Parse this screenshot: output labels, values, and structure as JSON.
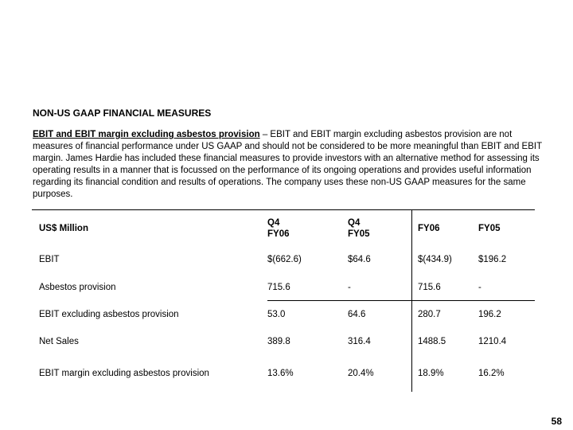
{
  "title": "NON-US GAAP FINANCIAL MEASURES",
  "intro": {
    "term": "EBIT and EBIT margin excluding asbestos provision",
    "text": " – EBIT and EBIT margin excluding asbestos provision are not measures of financial performance under US GAAP and should not be considered to be more meaningful than EBIT and EBIT margin. James Hardie has included these financial measures to provide investors with an alternative method for assessing its operating results in a manner that is focussed on the performance of its ongoing operations and provides useful information regarding its financial condition and results of operations. The company uses these non-US GAAP measures for the same purposes."
  },
  "table": {
    "headers": [
      {
        "l1": "US$ Million",
        "l2": ""
      },
      {
        "l1": "Q4",
        "l2": "FY06"
      },
      {
        "l1": "Q4",
        "l2": "FY05"
      },
      {
        "l1": "FY06",
        "l2": ""
      },
      {
        "l1": "FY05",
        "l2": ""
      }
    ],
    "rows": [
      [
        "EBIT",
        "$(662.6)",
        "$64.6",
        "$(434.9)",
        "$196.2"
      ],
      [
        "Asbestos provision",
        "715.6",
        "-",
        "715.6",
        "-"
      ],
      [
        "EBIT excluding asbestos provision",
        "53.0",
        "64.6",
        "280.7",
        "196.2"
      ],
      [
        "Net Sales",
        "389.8",
        "316.4",
        "1488.5",
        "1210.4"
      ],
      [
        "EBIT margin excluding asbestos provision",
        "13.6%",
        "20.4%",
        "18.9%",
        "16.2%"
      ]
    ]
  },
  "page_number": "58"
}
